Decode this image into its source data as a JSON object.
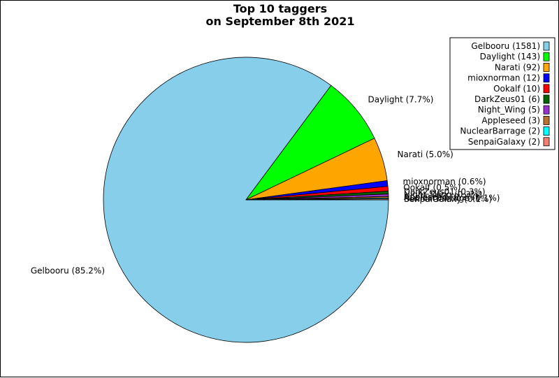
{
  "chart_data": {
    "type": "pie",
    "title": [
      "Top 10 taggers",
      "on September 8th 2021"
    ],
    "slices": [
      {
        "name": "Gelbooru",
        "value": 1581,
        "color": "#87ceeb",
        "legend_label": "Gelbooru (1581)",
        "slice_label": "Gelbooru (85.2%)"
      },
      {
        "name": "Daylight",
        "value": 143,
        "color": "#00ff00",
        "legend_label": "Daylight (143)",
        "slice_label": "Daylight (7.7%)"
      },
      {
        "name": "Narati",
        "value": 92,
        "color": "#ffa500",
        "legend_label": "Narati (92)",
        "slice_label": "Narati (5.0%)"
      },
      {
        "name": "mioxnorman",
        "value": 12,
        "color": "#0000ff",
        "legend_label": "mioxnorman (12)",
        "slice_label": "mioxnorman (0.6%)"
      },
      {
        "name": "Ookalf",
        "value": 10,
        "color": "#ff0000",
        "legend_label": "Ookalf (10)",
        "slice_label": "Ookalf (0.5%)"
      },
      {
        "name": "DarkZeus01",
        "value": 6,
        "color": "#006400",
        "legend_label": "DarkZeus01 (6)",
        "slice_label": "DarkZeus01 (0.3%)"
      },
      {
        "name": "Night_Wing",
        "value": 5,
        "color": "#9932cc",
        "legend_label": "Night_Wing (5)",
        "slice_label": "Night_Wing (0.3%)"
      },
      {
        "name": "Appleseed",
        "value": 3,
        "color": "#b8732f",
        "legend_label": "Appleseed (3)",
        "slice_label": "Appleseed (0.2%)"
      },
      {
        "name": "NuclearBarrage",
        "value": 2,
        "color": "#00ffff",
        "legend_label": "NuclearBarrage (2)",
        "slice_label": "NuclearBarrage (0.1%)"
      },
      {
        "name": "SenpaiGalaxy",
        "value": 2,
        "color": "#f08070",
        "legend_label": "SenpaiGalaxy (2)",
        "slice_label": "SenpaiGalaxy (0.1%)"
      }
    ],
    "legend_position": "top-right",
    "start_angle_deg": 0,
    "direction": "clockwise"
  }
}
